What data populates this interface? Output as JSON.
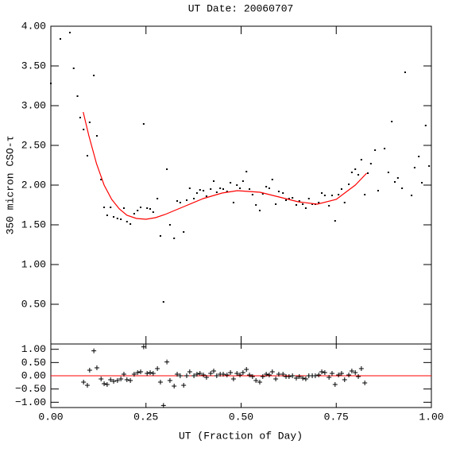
{
  "chart_data": [
    {
      "type": "scatter",
      "title": "UT Date: 20060707",
      "ylabel": "350 micron CSO-τ",
      "color": "#000000",
      "x": [
        0.0,
        0.025,
        0.05,
        0.06,
        0.07,
        0.077,
        0.086,
        0.096,
        0.102,
        0.113,
        0.121,
        0.132,
        0.14,
        0.148,
        0.157,
        0.165,
        0.175,
        0.184,
        0.192,
        0.2,
        0.209,
        0.219,
        0.228,
        0.236,
        0.244,
        0.253,
        0.261,
        0.269,
        0.28,
        0.288,
        0.296,
        0.305,
        0.313,
        0.324,
        0.332,
        0.34,
        0.349,
        0.357,
        0.365,
        0.376,
        0.384,
        0.392,
        0.401,
        0.409,
        0.42,
        0.428,
        0.436,
        0.445,
        0.453,
        0.463,
        0.472,
        0.48,
        0.489,
        0.497,
        0.505,
        0.514,
        0.522,
        0.53,
        0.539,
        0.549,
        0.557,
        0.566,
        0.574,
        0.582,
        0.591,
        0.599,
        0.61,
        0.618,
        0.626,
        0.635,
        0.645,
        0.653,
        0.662,
        0.67,
        0.678,
        0.687,
        0.695,
        0.704,
        0.712,
        0.72,
        0.731,
        0.739,
        0.747,
        0.756,
        0.764,
        0.772,
        0.783,
        0.791,
        0.8,
        0.808,
        0.816,
        0.825,
        0.833,
        0.841,
        0.852,
        0.86,
        0.877,
        0.887,
        0.896,
        0.904,
        0.912,
        0.923,
        0.931,
        0.948,
        0.956,
        0.967,
        0.975,
        0.985,
        0.994
      ],
      "values": [
        3.28,
        3.84,
        3.92,
        3.47,
        3.12,
        2.85,
        2.7,
        2.37,
        2.79,
        3.38,
        2.62,
        2.07,
        1.72,
        1.62,
        1.72,
        1.6,
        1.58,
        1.57,
        1.71,
        1.54,
        1.51,
        1.64,
        1.68,
        1.72,
        2.77,
        1.71,
        1.7,
        1.66,
        1.83,
        1.36,
        0.53,
        2.2,
        1.5,
        1.33,
        1.8,
        1.78,
        1.41,
        1.81,
        1.96,
        1.83,
        1.9,
        1.94,
        1.93,
        1.86,
        1.95,
        2.05,
        1.91,
        1.96,
        1.95,
        1.92,
        2.03,
        1.78,
        2.0,
        1.96,
        2.05,
        2.17,
        1.95,
        1.88,
        1.75,
        1.68,
        1.89,
        1.98,
        1.96,
        2.07,
        1.76,
        1.92,
        1.9,
        1.81,
        1.83,
        1.84,
        1.75,
        1.8,
        1.76,
        1.71,
        1.83,
        1.76,
        1.76,
        1.78,
        1.9,
        1.87,
        1.74,
        1.87,
        1.55,
        1.88,
        1.95,
        1.78,
        2.01,
        2.16,
        2.2,
        2.13,
        2.32,
        1.88,
        2.15,
        2.27,
        2.44,
        1.93,
        2.46,
        2.16,
        2.8,
        2.04,
        2.09,
        1.96,
        3.42,
        1.87,
        2.22,
        2.36,
        2.03,
        2.75,
        2.24
      ],
      "fit": {
        "color": "#ff0000",
        "x": [
          0.085,
          0.1,
          0.12,
          0.14,
          0.16,
          0.18,
          0.2,
          0.225,
          0.25,
          0.275,
          0.3,
          0.35,
          0.4,
          0.45,
          0.49,
          0.55,
          0.6,
          0.65,
          0.7,
          0.75,
          0.8,
          0.83
        ],
        "values": [
          2.92,
          2.62,
          2.27,
          2.0,
          1.82,
          1.7,
          1.62,
          1.58,
          1.57,
          1.59,
          1.63,
          1.73,
          1.83,
          1.9,
          1.93,
          1.91,
          1.85,
          1.79,
          1.76,
          1.82,
          2.0,
          2.15
        ]
      },
      "xlim": [
        0,
        1
      ],
      "ylim": [
        0,
        4
      ],
      "xticks": [
        0,
        0.25,
        0.5,
        0.75,
        1
      ],
      "yticks": [
        {
          "value": 0.5,
          "label": "0.50"
        },
        {
          "value": 1,
          "label": "1.00"
        },
        {
          "value": 1.5,
          "label": "1.50"
        },
        {
          "value": 2,
          "label": "2.00"
        },
        {
          "value": 2.5,
          "label": "2.50"
        },
        {
          "value": 3,
          "label": "3.00"
        },
        {
          "value": 3.5,
          "label": "3.50"
        },
        {
          "value": 4,
          "label": "4.00"
        }
      ]
    },
    {
      "type": "residual",
      "xlabel": "UT (Fraction of Day)",
      "color": "#000000",
      "x": [
        0.086,
        0.096,
        0.102,
        0.113,
        0.121,
        0.132,
        0.14,
        0.148,
        0.157,
        0.165,
        0.175,
        0.184,
        0.192,
        0.2,
        0.209,
        0.219,
        0.228,
        0.236,
        0.244,
        0.253,
        0.261,
        0.269,
        0.28,
        0.288,
        0.296,
        0.305,
        0.313,
        0.324,
        0.332,
        0.34,
        0.349,
        0.357,
        0.365,
        0.376,
        0.384,
        0.392,
        0.401,
        0.409,
        0.42,
        0.428,
        0.436,
        0.445,
        0.453,
        0.463,
        0.472,
        0.48,
        0.489,
        0.497,
        0.505,
        0.514,
        0.522,
        0.53,
        0.539,
        0.549,
        0.557,
        0.566,
        0.574,
        0.582,
        0.591,
        0.599,
        0.61,
        0.618,
        0.626,
        0.635,
        0.645,
        0.653,
        0.662,
        0.67,
        0.678,
        0.687,
        0.695,
        0.704,
        0.712,
        0.72,
        0.731,
        0.739,
        0.747,
        0.756,
        0.764,
        0.772,
        0.783,
        0.791,
        0.8,
        0.808,
        0.816,
        0.825
      ],
      "values": [
        -0.24,
        -0.36,
        0.21,
        0.94,
        0.3,
        -0.12,
        -0.3,
        -0.33,
        -0.15,
        -0.21,
        -0.18,
        -0.12,
        0.06,
        -0.15,
        -0.18,
        0.06,
        0.12,
        0.15,
        1.09,
        0.09,
        0.12,
        0.09,
        0.27,
        -0.24,
        -1.12,
        0.52,
        -0.18,
        -0.39,
        0.06,
        0.0,
        -0.36,
        0.0,
        0.15,
        0.0,
        0.06,
        0.09,
        0.03,
        -0.06,
        0.09,
        0.18,
        0.0,
        0.06,
        0.06,
        0.03,
        0.12,
        -0.12,
        0.09,
        0.03,
        0.12,
        0.24,
        0.03,
        -0.03,
        -0.18,
        -0.24,
        -0.03,
        0.06,
        0.03,
        0.15,
        -0.12,
        0.06,
        0.06,
        -0.03,
        -0.03,
        0.0,
        -0.09,
        -0.03,
        -0.09,
        -0.12,
        0.0,
        0.0,
        0.0,
        0.03,
        0.15,
        0.12,
        -0.06,
        0.09,
        -0.33,
        0.03,
        0.09,
        -0.15,
        0.03,
        0.18,
        0.12,
        -0.03,
        0.27,
        -0.27
      ],
      "zero_line": {
        "value": 0,
        "color": "#ff0000"
      },
      "xlim": [
        0,
        1
      ],
      "ylim": [
        -1.2,
        1.2
      ],
      "xticks": [
        {
          "value": 0,
          "label": "0.00"
        },
        {
          "value": 0.25,
          "label": "0.25"
        },
        {
          "value": 0.5,
          "label": "0.50"
        },
        {
          "value": 0.75,
          "label": "0.75"
        },
        {
          "value": 1,
          "label": "1.00"
        }
      ],
      "yticks": [
        {
          "value": -1,
          "label": "−1.00"
        },
        {
          "value": -0.5,
          "label": "−0.50"
        },
        {
          "value": 0,
          "label": "0.00"
        },
        {
          "value": 0.5,
          "label": "0.50"
        },
        {
          "value": 1,
          "label": "1.00"
        }
      ]
    }
  ]
}
